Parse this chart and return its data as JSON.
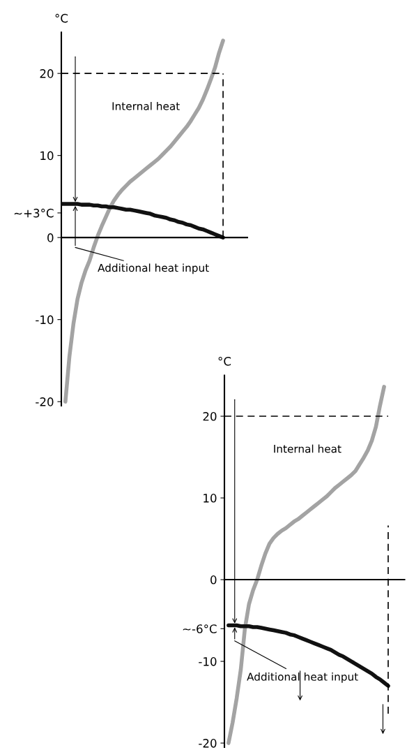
{
  "chart_data": [
    {
      "type": "line",
      "ylabel": "°C",
      "ylim": [
        -20.5,
        25
      ],
      "yticks": [
        -20,
        -10,
        0,
        {
          "value": 3,
          "label": "~+3°C"
        },
        10,
        20
      ],
      "tick_labels": "y",
      "categories": [
        null,
        null,
        null,
        null,
        null,
        null,
        null,
        null,
        null,
        null,
        null,
        null,
        null,
        null,
        null,
        null,
        null,
        null,
        null,
        null,
        null,
        null,
        null,
        null,
        null,
        null,
        null,
        null,
        null,
        null,
        null,
        null,
        null,
        null,
        null,
        null,
        null,
        null,
        null,
        null,
        null,
        null,
        null,
        null,
        null,
        null,
        null
      ],
      "annotations": [
        "Internal heat",
        "Additional heat input"
      ],
      "ref_lines": [
        {
          "axis": "y",
          "value": 20,
          "color": "#000000",
          "line_style": "dashed"
        }
      ],
      "series": [
        {
          "color": "#a3a3a3",
          "values": [
            null,
            -20,
            -14.5,
            -10.5,
            -7.5,
            -5.5,
            -4,
            -2.8,
            -1.2,
            0.2,
            1.4,
            2.5,
            3.6,
            4.5,
            5.2,
            5.8,
            6.3,
            6.8,
            7.2,
            7.6,
            8,
            8.4,
            8.8,
            9.2,
            9.6,
            10.1,
            10.6,
            11.1,
            11.7,
            12.3,
            12.9,
            13.5,
            14.2,
            15,
            15.8,
            16.8,
            18,
            19.3,
            20.7,
            22.5,
            24,
            null,
            null,
            null,
            null,
            null,
            null
          ]
        },
        {
          "color": "#111111",
          "values": [
            4.1,
            4.1,
            4.1,
            4.1,
            4.1,
            4.0,
            4.0,
            4.0,
            3.9,
            3.9,
            3.8,
            3.8,
            3.7,
            3.7,
            3.6,
            3.5,
            3.4,
            3.4,
            3.3,
            3.2,
            3.1,
            3.0,
            2.9,
            2.7,
            2.6,
            2.5,
            2.4,
            2.2,
            2.1,
            1.9,
            1.8,
            1.6,
            1.5,
            1.3,
            1.1,
            1.0,
            0.8,
            0.6,
            0.4,
            0.2,
            0,
            null,
            null,
            null,
            null,
            null,
            null
          ]
        }
      ]
    },
    {
      "type": "line",
      "ylabel": "°C",
      "ylim": [
        -20.5,
        25
      ],
      "yticks": [
        -20,
        -10,
        {
          "value": -6,
          "label": "~-6°C"
        },
        0,
        10,
        20
      ],
      "tick_labels": "y",
      "categories": [
        null,
        null,
        null,
        null,
        null,
        null,
        null,
        null,
        null,
        null,
        null,
        null,
        null,
        null,
        null,
        null,
        null,
        null,
        null,
        null,
        null,
        null,
        null,
        null,
        null,
        null,
        null,
        null,
        null,
        null,
        null,
        null,
        null,
        null,
        null,
        null,
        null,
        null,
        null,
        null,
        null,
        null,
        null,
        null,
        null
      ],
      "annotations": [
        "Internal heat",
        "Additional heat input"
      ],
      "ref_lines": [
        {
          "axis": "y",
          "value": 20,
          "color": "#000000",
          "line_style": "dashed"
        }
      ],
      "series": [
        {
          "color": "#a3a3a3",
          "values": [
            null,
            -20,
            -17.5,
            -14.5,
            -11,
            -6,
            -3,
            -1.3,
            0,
            1.7,
            3.2,
            4.4,
            5.1,
            5.6,
            6,
            6.3,
            6.7,
            7.1,
            7.4,
            7.8,
            8.2,
            8.6,
            9.0,
            9.4,
            9.8,
            10.2,
            10.7,
            11.2,
            11.6,
            12,
            12.4,
            12.8,
            13.3,
            14.1,
            14.9,
            15.8,
            17,
            18.7,
            21.3,
            23.6,
            null,
            null,
            null,
            null,
            null
          ]
        },
        {
          "color": "#111111",
          "values": [
            null,
            -5.6,
            -5.6,
            -5.6,
            -5.7,
            -5.7,
            -5.7,
            -5.8,
            -5.8,
            -5.9,
            -6.0,
            -6.1,
            -6.2,
            -6.3,
            -6.4,
            -6.5,
            -6.7,
            -6.8,
            -7.0,
            -7.2,
            -7.4,
            -7.6,
            -7.8,
            -8.0,
            -8.2,
            -8.4,
            -8.6,
            -8.9,
            -9.2,
            -9.4,
            -9.7,
            -10.0,
            -10.3,
            -10.6,
            -10.9,
            -11.2,
            -11.5,
            -11.9,
            -12.2,
            -12.6,
            -13.0,
            null,
            null,
            null,
            null
          ]
        }
      ]
    }
  ]
}
